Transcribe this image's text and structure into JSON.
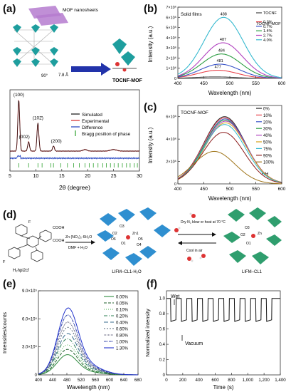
{
  "panels": {
    "a": {
      "label": "(a)",
      "schematic": {
        "nanosheets_label": "MOF nanosheets",
        "angle_label": "90°",
        "distance_label": "7.8 Å",
        "product_label": "TOCNF-MOF"
      },
      "chart_data": {
        "type": "line",
        "xlabel": "2θ (degree)",
        "ylabel": "",
        "xlim": [
          5,
          30
        ],
        "xticks": [
          "5",
          "10",
          "15",
          "20",
          "25",
          "30"
        ],
        "legend": [
          "Simulated",
          "Experimental",
          "Difference",
          "Bragg position of phase"
        ],
        "peak_labels": [
          "(100)",
          "(002)",
          "(102̄)",
          "(200)"
        ],
        "peaks": [
          {
            "x": 6.7,
            "label": "(100)",
            "height": 1.0
          },
          {
            "x": 8.6,
            "label": "(002)",
            "height": 0.18
          },
          {
            "x": 10.4,
            "label": "(102̄)",
            "height": 0.55
          },
          {
            "x": 13.4,
            "label": "(200)",
            "height": 0.1
          }
        ],
        "colors": {
          "simulated": "#111111",
          "experimental": "#d62728",
          "difference": "#1f3fbf",
          "bragg": "#2ca02c"
        }
      }
    },
    "b": {
      "label": "(b)",
      "chart_data": {
        "type": "line",
        "title": "Solid films",
        "xlabel": "Wavelength (nm)",
        "ylabel": "Intensity (a.u.)",
        "xlim": [
          400,
          600
        ],
        "ylim": [
          0,
          7000000
        ],
        "xticks": [
          "400",
          "450",
          "500",
          "550",
          "600"
        ],
        "yticks": [
          "0",
          "1×10⁶",
          "2×10⁶",
          "3×10⁶",
          "4×10⁶",
          "5×10⁶",
          "6×10⁶",
          "7×10⁶"
        ],
        "legend_title": "TOCNF-MOF",
        "series": [
          {
            "name": "TOCNF",
            "peak_x": 472,
            "peak_y": 150000,
            "color": "#444444"
          },
          {
            "name": "0.3%",
            "peak_x": 477,
            "peak_y": 800000,
            "color": "#e8434c"
          },
          {
            "name": "0.7%",
            "peak_x": 481,
            "peak_y": 1400000,
            "color": "#3b55c8"
          },
          {
            "name": "1.4%",
            "peak_x": 484,
            "peak_y": 2400000,
            "color": "#2e9e44"
          },
          {
            "name": "2.7%",
            "peak_x": 487,
            "peak_y": 3500000,
            "color": "#b03fbf"
          },
          {
            "name": "4.0%",
            "peak_x": 488,
            "peak_y": 6000000,
            "color": "#35b9cf"
          }
        ],
        "peak_labels": [
          "488",
          "487",
          "484",
          "481",
          "477"
        ]
      }
    },
    "c": {
      "label": "(c)",
      "chart_data": {
        "type": "line",
        "title": "TOCNF-MOF",
        "xlabel": "Wavelength (nm)",
        "ylabel": "Intensity (a.u.)",
        "xlim": [
          400,
          600
        ],
        "ylim": [
          0,
          7000000
        ],
        "xticks": [
          "400",
          "450",
          "500",
          "550",
          "600"
        ],
        "yticks": [
          "0",
          "2×10⁶",
          "4×10⁶",
          "6×10⁶"
        ],
        "legend_note": "RH",
        "series": [
          {
            "name": "0%",
            "peak_x": 490,
            "peak_y": 6000000,
            "color": "#222222"
          },
          {
            "name": "10%",
            "peak_x": 490,
            "peak_y": 5900000,
            "color": "#e8434c"
          },
          {
            "name": "20%",
            "peak_x": 491,
            "peak_y": 5800000,
            "color": "#3b55c8"
          },
          {
            "name": "30%",
            "peak_x": 491,
            "peak_y": 5700000,
            "color": "#2e9e44"
          },
          {
            "name": "40%",
            "peak_x": 492,
            "peak_y": 5600000,
            "color": "#b03fbf"
          },
          {
            "name": "50%",
            "peak_x": 492,
            "peak_y": 5450000,
            "color": "#d4a017"
          },
          {
            "name": "75%",
            "peak_x": 490,
            "peak_y": 5300000,
            "color": "#35b9cf"
          },
          {
            "name": "90%",
            "peak_x": 488,
            "peak_y": 4600000,
            "color": "#8c1c1c"
          },
          {
            "name": "100%",
            "peak_x": 470,
            "peak_y": 2900000,
            "color": "#a0761c"
          }
        ]
      }
    },
    "d": {
      "label": "(d)",
      "ligand_label": "H₂hpi2cf",
      "reagent_label": "Zn (NO₃)₂·6H₂O",
      "solvent_label": "DMF + H₂O",
      "forward_label": "Dry N₂ blow or heat at 70 °C",
      "reverse_label": "Cool in air",
      "left_product": "LIFM–CL1-H₂O",
      "right_product": "LIFM–CL1",
      "atom_labels": [
        "COOH",
        "COOH",
        "F",
        "F",
        "O1",
        "O2",
        "O3",
        "O4",
        "O5",
        "O6",
        "Zn1",
        "O1",
        "O2",
        "O3",
        "Zn"
      ]
    },
    "e": {
      "label": "(e)",
      "chart_data": {
        "type": "line",
        "xlabel": "Wavelength (nm)",
        "ylabel": "Intensities/counts",
        "xlim": [
          400,
          680
        ],
        "ylim": [
          0,
          900000
        ],
        "xticks": [
          "400",
          "440",
          "480",
          "520",
          "560",
          "600",
          "640",
          "680"
        ],
        "yticks": [
          "0",
          "3.0×10⁵",
          "6.0×10⁵",
          "9.0×10⁵"
        ],
        "series": [
          {
            "name": "0.00%",
            "peak_x": 480,
            "peak_y": 230000,
            "color": "#2e8b3e",
            "dash": ""
          },
          {
            "name": "0.05%",
            "peak_x": 480,
            "peak_y": 290000,
            "color": "#1e5e2a",
            "dash": "4,2"
          },
          {
            "name": "0.10%",
            "peak_x": 480,
            "peak_y": 340000,
            "color": "#4caf50",
            "dash": "1,2"
          },
          {
            "name": "0.20%",
            "peak_x": 480,
            "peak_y": 410000,
            "color": "#2a7d52",
            "dash": "5,2,1,2"
          },
          {
            "name": "0.40%",
            "peak_x": 481,
            "peak_y": 470000,
            "color": "#386b8c",
            "dash": "6,3"
          },
          {
            "name": "0.60%",
            "peak_x": 481,
            "peak_y": 540000,
            "color": "#556677",
            "dash": "2,2"
          },
          {
            "name": "0.80%",
            "peak_x": 481,
            "peak_y": 600000,
            "color": "#444466",
            "dash": "1,1"
          },
          {
            "name": "1.00%",
            "peak_x": 481,
            "peak_y": 680000,
            "color": "#3344aa",
            "dash": "4,1,1,1"
          },
          {
            "name": "1.30%",
            "peak_x": 482,
            "peak_y": 760000,
            "color": "#2233cc",
            "dash": ""
          }
        ]
      }
    },
    "f": {
      "label": "(f)",
      "chart_data": {
        "type": "line",
        "xlabel": "Time (s)",
        "ylabel": "Normalized intensity",
        "xlim": [
          0,
          1400
        ],
        "ylim": [
          0,
          1.1
        ],
        "xticks": [
          "0",
          "200",
          "400",
          "600",
          "800",
          "1,000",
          "1,200",
          "1,400"
        ],
        "yticks": [
          "0",
          "0.2",
          "0.4",
          "0.6",
          "0.8",
          "1.0"
        ],
        "annotations": [
          "Wet",
          "Vacuum"
        ],
        "high_level": 1.0,
        "low_level": 0.7,
        "cycles": 10
      }
    }
  }
}
